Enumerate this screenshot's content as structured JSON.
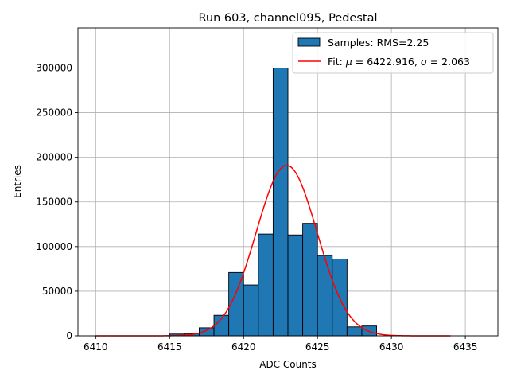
{
  "chart_data": {
    "type": "bar",
    "title": "Run 603, channel095, Pedestal",
    "xlabel": "ADC Counts",
    "ylabel": "Entries",
    "xlim": [
      6408.8,
      6437.2
    ],
    "ylim": [
      0,
      345000
    ],
    "xticks": [
      6410,
      6415,
      6420,
      6425,
      6430,
      6435
    ],
    "yticks": [
      0,
      50000,
      100000,
      150000,
      200000,
      250000,
      300000
    ],
    "grid": true,
    "legend_position": "top-right",
    "colors": {
      "bars": "#1f77b4",
      "bar_edge": "#000000",
      "fit": "#ff0000",
      "grid": "#b0b0b0"
    },
    "histogram": {
      "name": "Samples: RMS=2.25",
      "bin_width": 1,
      "bins": [
        {
          "x0": 6415,
          "count": 2000
        },
        {
          "x0": 6416,
          "count": 2500
        },
        {
          "x0": 6417,
          "count": 9000
        },
        {
          "x0": 6418,
          "count": 23000
        },
        {
          "x0": 6419,
          "count": 71000
        },
        {
          "x0": 6420,
          "count": 57000
        },
        {
          "x0": 6421,
          "count": 114000
        },
        {
          "x0": 6422,
          "count": 300000
        },
        {
          "x0": 6423,
          "count": 113000
        },
        {
          "x0": 6424,
          "count": 126000
        },
        {
          "x0": 6425,
          "count": 90000
        },
        {
          "x0": 6426,
          "count": 86000
        },
        {
          "x0": 6427,
          "count": 10000
        },
        {
          "x0": 6428,
          "count": 11000
        }
      ]
    },
    "fit": {
      "name": "Fit: μ = 6422.916, σ = 2.063",
      "label_parts": [
        "Fit: ",
        "μ",
        " = 6422.916, ",
        "σ",
        " = 2.063"
      ],
      "function": "gaussian",
      "mu": 6422.916,
      "sigma": 2.063,
      "amplitude": 191000,
      "x_range": [
        6410,
        6434
      ]
    }
  }
}
